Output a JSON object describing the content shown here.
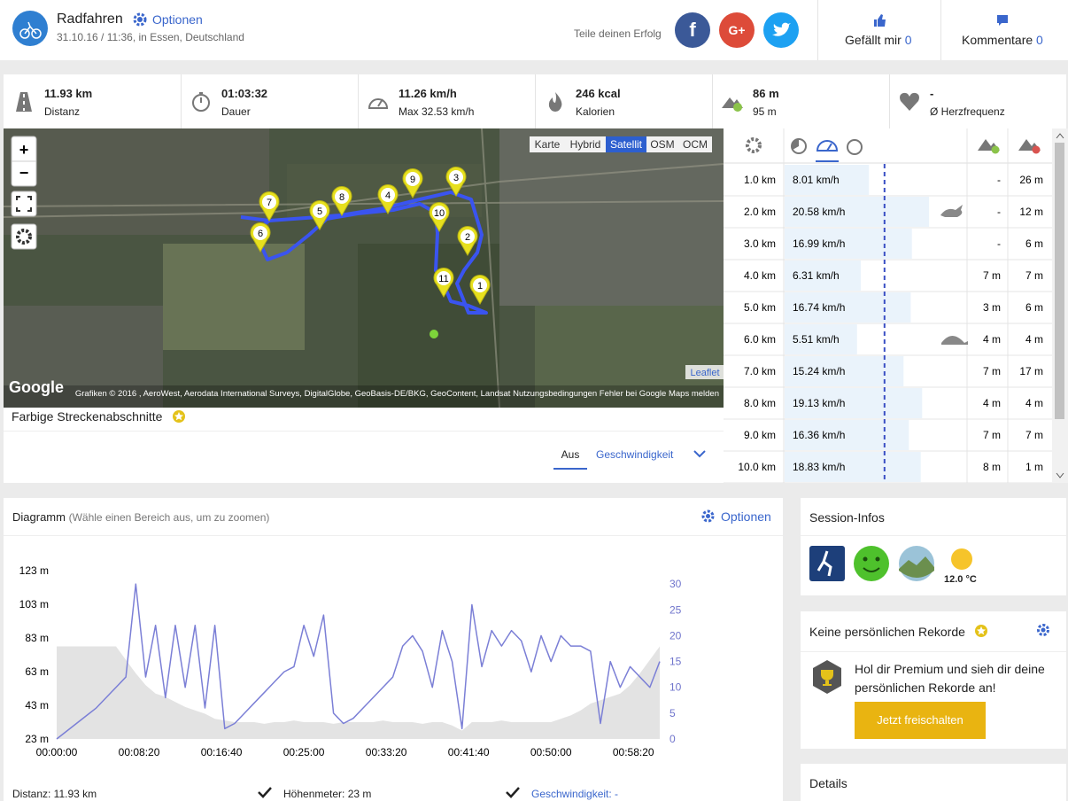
{
  "header": {
    "title": "Radfahren",
    "options": "Optionen",
    "date": "31.10.16 / 11:36, in Essen, Deutschland",
    "share": "Teile deinen Erfolg",
    "facebook": "f",
    "google": "G+",
    "like": "Gefällt mir",
    "like_count": "0",
    "comments": "Kommentare",
    "comment_count": "0"
  },
  "stats": [
    {
      "value": "11.93 km",
      "label": "Distanz"
    },
    {
      "value": "01:03:32",
      "label": "Dauer"
    },
    {
      "value": "11.26 km/h",
      "label": "Max 32.53 km/h"
    },
    {
      "value": "246 kcal",
      "label": "Kalorien"
    },
    {
      "value": "86 m",
      "label": "95 m"
    },
    {
      "value": "-",
      "label": "Ø Herzfrequenz"
    }
  ],
  "map": {
    "zoom_in": "+",
    "zoom_out": "−",
    "layers": [
      "Karte",
      "Hybrid",
      "Satellit",
      "OSM",
      "OCM"
    ],
    "active_layer": "Satellit",
    "markers": [
      "1",
      "2",
      "3",
      "4",
      "5",
      "6",
      "7",
      "8",
      "9",
      "10",
      "11"
    ],
    "leaflet": "Leaflet",
    "google": "Google",
    "attribution": "Grafiken © 2016 , AeroWest, Aerodata International Surveys, DigitalGlobe, GeoBasis-DE/BKG, GeoContent, Landsat    Nutzungsbedingungen    Fehler bei Google Maps melden"
  },
  "segments": {
    "title": "Farbige Streckenabschnitte",
    "tabs": [
      "Aus",
      "Geschwindigkeit"
    ]
  },
  "splits": {
    "average": 11.26,
    "rows": [
      {
        "distance": "1.0 km",
        "speed": {
          "value": 8.01,
          "label": "8.01 km/h"
        },
        "up": "-",
        "down": "26 m"
      },
      {
        "distance": "2.0 km",
        "speed": {
          "value": 20.58,
          "label": "20.58 km/h"
        },
        "up": "-",
        "down": "12 m"
      },
      {
        "distance": "3.0 km",
        "speed": {
          "value": 16.99,
          "label": "16.99 km/h"
        },
        "up": "-",
        "down": "6 m"
      },
      {
        "distance": "4.0 km",
        "speed": {
          "value": 6.31,
          "label": "6.31 km/h"
        },
        "up": "7 m",
        "down": "7 m"
      },
      {
        "distance": "5.0 km",
        "speed": {
          "value": 16.74,
          "label": "16.74 km/h"
        },
        "up": "3 m",
        "down": "6 m"
      },
      {
        "distance": "6.0 km",
        "speed": {
          "value": 5.51,
          "label": "5.51 km/h"
        },
        "up": "4 m",
        "down": "4 m"
      },
      {
        "distance": "7.0 km",
        "speed": {
          "value": 15.24,
          "label": "15.24 km/h"
        },
        "up": "7 m",
        "down": "17 m"
      },
      {
        "distance": "8.0 km",
        "speed": {
          "value": 19.13,
          "label": "19.13 km/h"
        },
        "up": "4 m",
        "down": "4 m"
      },
      {
        "distance": "9.0 km",
        "speed": {
          "value": 16.36,
          "label": "16.36 km/h"
        },
        "up": "7 m",
        "down": "7 m"
      },
      {
        "distance": "10.0 km",
        "speed": {
          "value": 18.83,
          "label": "18.83 km/h"
        },
        "up": "8 m",
        "down": "1 m"
      }
    ]
  },
  "diagram": {
    "title": "Diagramm",
    "hint": "(Wähle einen Bereich aus, um zu zoomen)",
    "options": "Optionen",
    "footer": [
      "Distanz: 11.93 km",
      "Höhenmeter: 23 m",
      "Geschwindigkeit: -"
    ]
  },
  "chart_data": {
    "type": "line",
    "x": [
      0,
      60,
      120,
      180,
      240,
      300,
      360,
      420,
      480,
      540,
      600,
      660,
      720,
      780,
      840,
      900,
      960,
      1020,
      1080,
      1140,
      1200,
      1260,
      1320,
      1380,
      1440,
      1500,
      1560,
      1620,
      1680,
      1740,
      1800,
      1860,
      1920,
      1980,
      2040,
      2100,
      2160,
      2220,
      2280,
      2340,
      2400,
      2460,
      2520,
      2580,
      2640,
      2700,
      2760,
      2820,
      2880,
      2940,
      3000,
      3060,
      3120,
      3180,
      3240,
      3300,
      3360,
      3420,
      3480,
      3540,
      3600,
      3660
    ],
    "series": [
      {
        "color": "#e3e3e3",
        "fill": true,
        "values": [
          78,
          78,
          78,
          78,
          78,
          78,
          78,
          70,
          62,
          55,
          50,
          48,
          45,
          42,
          40,
          38,
          35,
          34,
          33,
          33,
          33,
          32,
          33,
          33,
          34,
          33,
          33,
          33,
          32,
          33,
          33,
          33,
          33,
          34,
          33,
          33,
          33,
          32,
          33,
          33,
          31,
          28,
          33,
          33,
          33,
          34,
          33,
          33,
          33,
          33,
          33,
          35,
          37,
          40,
          44,
          46,
          48,
          50,
          55,
          62,
          70,
          78
        ]
      },
      {
        "color": "#7b7fd6",
        "axis": "y2",
        "values": [
          0,
          1.5,
          3,
          4.5,
          6,
          8,
          10,
          12,
          30,
          12,
          22,
          8,
          22,
          10,
          22,
          6,
          22,
          2,
          3,
          5,
          7,
          9,
          11,
          13,
          14,
          22,
          16,
          24,
          5,
          3,
          4,
          6,
          8,
          10,
          12,
          18,
          20,
          17,
          10,
          21,
          15,
          2,
          26,
          14,
          21,
          18,
          21,
          19,
          13,
          20,
          15,
          20,
          18,
          18,
          17,
          3,
          15,
          10,
          14,
          12,
          10,
          15
        ]
      }
    ],
    "xlim": [
      0,
      3660
    ],
    "xticks": [
      {
        "value": 0,
        "label": "00:00:00"
      },
      {
        "value": 500,
        "label": "00:08:20"
      },
      {
        "value": 1000,
        "label": "00:16:40"
      },
      {
        "value": 1500,
        "label": "00:25:00"
      },
      {
        "value": 2000,
        "label": "00:33:20"
      },
      {
        "value": 2500,
        "label": "00:41:40"
      },
      {
        "value": 3000,
        "label": "00:50:00"
      },
      {
        "value": 3500,
        "label": "00:58:20"
      }
    ],
    "ylim": [
      23,
      123
    ],
    "yticks": [
      {
        "value": 23,
        "label": "23 m"
      },
      {
        "value": 43,
        "label": "43 m"
      },
      {
        "value": 63,
        "label": "63 m"
      },
      {
        "value": 83,
        "label": "83 m"
      },
      {
        "value": 103,
        "label": "103 m"
      },
      {
        "value": 123,
        "label": "123 m"
      }
    ],
    "y2lim": [
      0,
      32.6
    ],
    "y2ticks": [
      0,
      5,
      10,
      15,
      20,
      25,
      30
    ]
  },
  "sidebar": {
    "session": "Session-Infos",
    "temperature": "12.0 °C",
    "records": "Keine persönlichen Rekorde",
    "premium": "Hol dir Premium und sieh dir deine persönlichen Rekorde an!",
    "unlock": "Jetzt freischalten",
    "details": "Details"
  }
}
